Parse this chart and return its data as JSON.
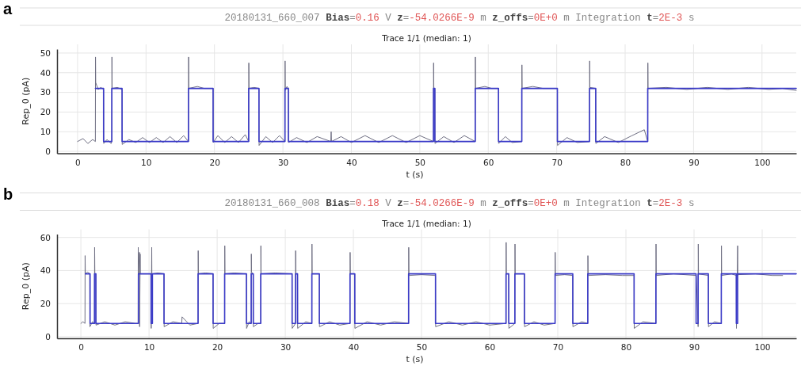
{
  "chart_data": [
    {
      "type": "line",
      "title": "20180131_660_007 Bias=0.16 V z=-54.0266E-9 m z_offs=0E+0 m Integration t=2E-3 s",
      "subtitle": "Trace 1/1 (median: 1)",
      "xlabel": "t (s)",
      "ylabel": "Rep_0 (pA)",
      "annotations": [
        "a"
      ],
      "xlim": [
        -3,
        105
      ],
      "ylim": [
        -1,
        52
      ],
      "xticks": [
        0,
        10,
        20,
        30,
        40,
        50,
        60,
        70,
        80,
        90,
        100
      ],
      "yticks": [
        0,
        10,
        20,
        30,
        40,
        50
      ],
      "grid": true,
      "marker": "none",
      "series": [
        {
          "type": "line",
          "color": "#6e6e82",
          "x": [
            0,
            0.8,
            1.5,
            2.2,
            2.6,
            2.62,
            2.65,
            3,
            3.4,
            3.8,
            3.82,
            4.3,
            4.9,
            5.0,
            5.02,
            5.05,
            5.8,
            6.5,
            6.52,
            7.5,
            8.5,
            9.5,
            10.5,
            11.5,
            12.5,
            13.5,
            14.5,
            15.5,
            16.2,
            16.22,
            16.25,
            17.5,
            18.5,
            19.8,
            19.82,
            20.5,
            21.5,
            22.5,
            23.5,
            24.5,
            25.0,
            25.02,
            25.05,
            25.8,
            26.5,
            26.52,
            27.5,
            28.5,
            29.5,
            30.3,
            30.32,
            30.35,
            30.6,
            30.8,
            30.82,
            32,
            33.5,
            35,
            37,
            37.05,
            37.1,
            38.5,
            40,
            42,
            44,
            46,
            48,
            50,
            52.0,
            52.02,
            52.05,
            52.2,
            52.22,
            53.5,
            55,
            56.5,
            58.1,
            58.12,
            58.15,
            59.5,
            60.5,
            61.5,
            61.52,
            62.5,
            63.5,
            64.9,
            64.92,
            64.95,
            66.5,
            68,
            70.1,
            70.12,
            71.5,
            73,
            74.8,
            74.82,
            74.85,
            75.7,
            75.72,
            77,
            79,
            81,
            82.8,
            83.3,
            83.32,
            83.35,
            86,
            89,
            92,
            95,
            98,
            101,
            103,
            105
          ],
          "values": [
            5,
            6.5,
            4,
            6,
            5,
            48,
            35,
            31.5,
            32.5,
            31.5,
            4,
            6,
            4,
            5,
            48,
            32,
            32.5,
            31.5,
            3.5,
            6,
            4.5,
            7,
            4.5,
            7,
            4.5,
            7.5,
            4.5,
            8,
            5,
            48,
            32,
            33,
            32,
            32,
            4.5,
            8,
            4.5,
            7.5,
            4.5,
            8.5,
            5,
            45,
            32,
            32.5,
            32,
            3,
            7.5,
            4.5,
            8,
            5,
            46,
            31,
            33,
            32,
            4.5,
            7,
            4.5,
            7.5,
            5,
            10,
            5,
            7.5,
            4.5,
            8,
            4.5,
            8,
            4.5,
            8,
            5,
            45,
            32,
            32,
            4,
            7.5,
            4.5,
            8,
            5,
            48,
            32,
            33,
            32,
            32,
            4,
            7.5,
            4.5,
            5,
            44,
            32,
            33,
            32,
            32,
            3,
            7,
            4.5,
            5,
            46,
            32.5,
            32,
            4,
            7.5,
            4.5,
            8,
            11,
            5,
            45,
            32,
            32.5,
            31.5,
            32.5,
            31.5,
            32.5,
            31.5,
            32,
            31
          ]
        },
        {
          "type": "step",
          "color": "#3b3bc8",
          "x": [
            2.6,
            3.8,
            5.0,
            6.5,
            16.2,
            19.8,
            25.0,
            26.5,
            30.3,
            30.8,
            52.0,
            52.2,
            58.1,
            61.5,
            64.9,
            70.1,
            74.8,
            75.7,
            83.3,
            105
          ],
          "values": [
            32,
            5,
            32,
            5,
            32,
            5,
            32,
            5,
            32,
            5,
            32,
            5,
            32,
            5,
            32,
            5,
            32,
            5,
            32,
            32
          ]
        }
      ]
    },
    {
      "type": "line",
      "title": "20180131_660_008 Bias=0.18 V z=-54.0266E-9 m z_offs=0E+0 m Integration t=2E-3 s",
      "subtitle": "Trace 1/1 (median: 1)",
      "xlabel": "t (s)",
      "ylabel": "Rep_0 (pA)",
      "annotations": [
        "b"
      ],
      "xlim": [
        -3.5,
        105
      ],
      "ylim": [
        -1,
        62
      ],
      "xticks": [
        0,
        10,
        20,
        30,
        40,
        50,
        60,
        70,
        80,
        90,
        100
      ],
      "yticks": [
        0,
        20,
        40,
        60
      ],
      "grid": true,
      "marker": "none",
      "series": [
        {
          "type": "line",
          "color": "#6e6e82",
          "x": [
            0,
            0.3,
            0.6,
            0.62,
            0.65,
            1.0,
            1.3,
            1.32,
            1.7,
            2.0,
            2.02,
            2.05,
            2.2,
            2.22,
            3.5,
            5,
            6.5,
            8.0,
            8.4,
            8.42,
            8.45,
            8.6,
            8.62,
            8.7,
            8.72,
            9.3,
            10.3,
            10.32,
            10.4,
            10.42,
            10.5,
            11.3,
            12.2,
            12.22,
            13.5,
            14.8,
            14.85,
            16,
            17.2,
            17.22,
            17.25,
            18.3,
            19.4,
            19.42,
            20.3,
            21.1,
            21.12,
            21.15,
            22.5,
            24.3,
            24.32,
            24.7,
            25.0,
            25.02,
            25.05,
            25.3,
            25.32,
            26.0,
            26.4,
            26.42,
            26.45,
            28.5,
            31.0,
            31.02,
            31.5,
            31.52,
            31.55,
            31.8,
            31.82,
            33,
            33.9,
            33.92,
            33.95,
            35.0,
            35.02,
            36.5,
            38,
            39.5,
            39.52,
            39.55,
            40.2,
            40.22,
            42,
            44,
            46,
            48.1,
            48.12,
            48.15,
            50,
            52.05,
            52.07,
            54,
            56,
            58,
            60,
            62.4,
            62.42,
            62.45,
            62.8,
            62.82,
            63.7,
            63.72,
            63.75,
            65.1,
            65.12,
            66.5,
            68,
            69.6,
            69.62,
            69.65,
            71,
            72.2,
            72.22,
            73.5,
            74.4,
            74.42,
            74.45,
            77,
            79.5,
            81.2,
            81.22,
            82.5,
            84.4,
            84.42,
            84.45,
            87,
            90.3,
            90.32,
            90.6,
            90.62,
            90.65,
            92.1,
            92.12,
            93,
            94.0,
            94.02,
            94.05,
            95.5,
            96.2,
            96.22,
            96.4,
            96.42,
            96.45,
            99,
            101.5,
            103
          ],
          "values": [
            8,
            9,
            8,
            49,
            38,
            39,
            38,
            6,
            9,
            8,
            54,
            38,
            38,
            7,
            9,
            7,
            9,
            8,
            8,
            54,
            38,
            51,
            6,
            50,
            38,
            38,
            38,
            5,
            54,
            38,
            38,
            38.5,
            38,
            6,
            9,
            8,
            12,
            7,
            8,
            52,
            38,
            38.5,
            38,
            5,
            8,
            8,
            55,
            38,
            38.5,
            38,
            5,
            9,
            8,
            50,
            39,
            38,
            6,
            8,
            8,
            55,
            38,
            38.5,
            38,
            5,
            8,
            52,
            38,
            38,
            5,
            9,
            8,
            56,
            38,
            38,
            6,
            9,
            7,
            8,
            51,
            38,
            38,
            5,
            9,
            7,
            9,
            8,
            54,
            37,
            37.5,
            37,
            6,
            9,
            7,
            9,
            7,
            8,
            57,
            38,
            38,
            5,
            8,
            56,
            38,
            38,
            6,
            9,
            7,
            8,
            51,
            37,
            37.5,
            37,
            6,
            9,
            8,
            49,
            37,
            37.5,
            37,
            37,
            5,
            9,
            8,
            56,
            37,
            38,
            37,
            37,
            6,
            56,
            38,
            37,
            6,
            9,
            8,
            55,
            37,
            38,
            37,
            5,
            55,
            37,
            37.5,
            38,
            37,
            37
          ]
        },
        {
          "type": "step",
          "color": "#3b3bc8",
          "x": [
            0.65,
            1.35,
            2.0,
            2.2,
            8.45,
            10.3,
            10.5,
            12.2,
            17.2,
            19.4,
            21.1,
            24.3,
            25.0,
            25.3,
            26.4,
            31.0,
            31.5,
            31.8,
            33.9,
            35.0,
            39.5,
            40.2,
            48.1,
            52.05,
            62.4,
            62.8,
            63.7,
            65.1,
            69.6,
            72.2,
            74.4,
            81.2,
            84.4,
            90.3,
            90.6,
            92.1,
            94.0,
            96.2,
            96.4,
            105
          ],
          "values": [
            38,
            8,
            38,
            8,
            38,
            8,
            38,
            8,
            38,
            8,
            38,
            8,
            38,
            8,
            38,
            8,
            38,
            8,
            38,
            8,
            38,
            8,
            38,
            8,
            38,
            8,
            38,
            8,
            38,
            8,
            38,
            8,
            38,
            8,
            38,
            8,
            38,
            8,
            38,
            38
          ]
        }
      ]
    }
  ]
}
